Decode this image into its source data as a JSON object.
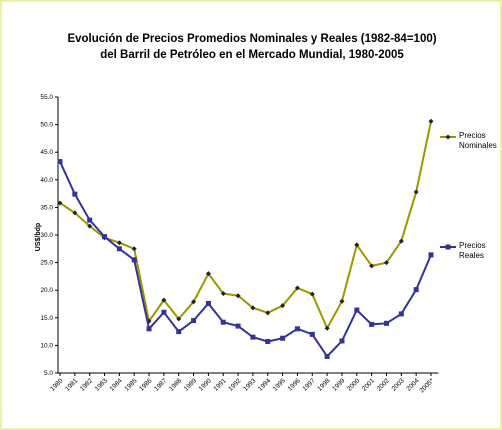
{
  "chart_data": {
    "type": "line",
    "title": [
      "Evolución de Precios Promedios Nominales y Reales (1982-84=100)",
      "del Barril de Petróleo en el Mercado Mundial, 1980-2005"
    ],
    "ylabel": "US$/bdp",
    "categories": [
      "1980",
      "1981",
      "1982",
      "1983",
      "1984",
      "1985",
      "1986",
      "1987",
      "1988",
      "1989",
      "1990",
      "1991",
      "1992",
      "1993",
      "1994",
      "1995",
      "1996",
      "1997",
      "1998",
      "1999",
      "2000",
      "2001",
      "2002",
      "2003",
      "2004",
      "2005*"
    ],
    "series": [
      {
        "name": "Precios Nominales",
        "color": "#999900",
        "marker": "diamond",
        "marker_color": "#222222",
        "values": [
          35.8,
          34.0,
          31.6,
          29.5,
          28.6,
          27.5,
          14.4,
          18.2,
          14.8,
          17.9,
          23.0,
          19.4,
          19.0,
          16.8,
          15.9,
          17.2,
          20.4,
          19.3,
          13.1,
          18.0,
          28.2,
          24.4,
          25.0,
          28.9,
          37.8,
          50.6
        ]
      },
      {
        "name": "Precios Reales",
        "color": "#333399",
        "marker": "square",
        "marker_color": "#333399",
        "values": [
          43.3,
          37.4,
          32.7,
          29.7,
          27.5,
          25.5,
          13.0,
          16.0,
          12.5,
          14.5,
          17.6,
          14.2,
          13.5,
          11.5,
          10.7,
          11.3,
          13.0,
          12.0,
          8.0,
          10.8,
          16.4,
          13.8,
          14.0,
          15.7,
          20.1,
          26.4
        ]
      }
    ],
    "ylim": [
      5,
      55
    ],
    "yticks": [
      {
        "value": 5,
        "label": "5.0"
      },
      {
        "value": 10,
        "label": "10.0"
      },
      {
        "value": 15,
        "label": "15.0"
      },
      {
        "value": 20,
        "label": "20.0"
      },
      {
        "value": 25,
        "label": "25.0"
      },
      {
        "value": 30,
        "label": "30.0"
      },
      {
        "value": 35,
        "label": "35.0"
      },
      {
        "value": 40,
        "label": "40.0"
      },
      {
        "value": 45,
        "label": "45.0"
      },
      {
        "value": 50,
        "label": "50.0"
      },
      {
        "value": 55,
        "label": "55.0"
      }
    ],
    "grid": false,
    "legend": "right"
  }
}
